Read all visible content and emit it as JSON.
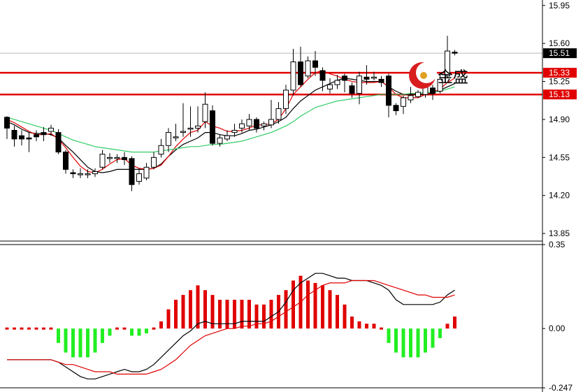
{
  "chart_data": [
    {
      "type": "candlestick",
      "ylim": [
        13.78,
        16.0
      ],
      "yticks": [
        "15.95",
        "15.60",
        "15.25",
        "14.90",
        "14.55",
        "14.20",
        "13.85"
      ],
      "last_price": {
        "value": 15.51,
        "label": "15.51"
      },
      "horizontal_lines": [
        {
          "value": 15.33,
          "label": "15.33",
          "color": "#e00000"
        },
        {
          "value": 15.13,
          "label": "15.13",
          "color": "#e00000"
        }
      ],
      "candles": [
        [
          14.92,
          14.82,
          14.93,
          14.72
        ],
        [
          14.8,
          14.72,
          14.84,
          14.65
        ],
        [
          14.75,
          14.72,
          14.8,
          14.66
        ],
        [
          14.73,
          14.72,
          14.78,
          14.6
        ],
        [
          14.76,
          14.74,
          14.8,
          14.7
        ],
        [
          14.78,
          14.76,
          14.83,
          14.7
        ],
        [
          14.79,
          14.82,
          14.85,
          14.75
        ],
        [
          14.78,
          14.6,
          14.81,
          14.58
        ],
        [
          14.6,
          14.44,
          14.62,
          14.4
        ],
        [
          14.41,
          14.4,
          14.44,
          14.36
        ],
        [
          14.4,
          14.4,
          14.45,
          14.36
        ],
        [
          14.4,
          14.4,
          14.44,
          14.36
        ],
        [
          14.4,
          14.42,
          14.45,
          14.37
        ],
        [
          14.46,
          14.58,
          14.62,
          14.44
        ],
        [
          14.54,
          14.55,
          14.59,
          14.5
        ],
        [
          14.54,
          14.55,
          14.58,
          14.5
        ],
        [
          14.55,
          14.53,
          14.6,
          14.48
        ],
        [
          14.54,
          14.3,
          14.56,
          14.24
        ],
        [
          14.33,
          14.4,
          14.45,
          14.3
        ],
        [
          14.36,
          14.46,
          14.5,
          14.34
        ],
        [
          14.46,
          14.55,
          14.6,
          14.44
        ],
        [
          14.58,
          14.66,
          14.72,
          14.55
        ],
        [
          14.66,
          14.78,
          14.82,
          14.6
        ],
        [
          14.74,
          14.74,
          14.86,
          14.7
        ],
        [
          14.78,
          14.79,
          15.05,
          14.74
        ],
        [
          14.82,
          14.82,
          15.02,
          14.74
        ],
        [
          14.82,
          14.84,
          15.02,
          14.78
        ],
        [
          14.88,
          15.04,
          15.15,
          14.82
        ],
        [
          14.98,
          14.68,
          15.03,
          14.66
        ],
        [
          14.68,
          14.73,
          14.76,
          14.65
        ],
        [
          14.72,
          14.75,
          14.8,
          14.7
        ],
        [
          14.78,
          14.8,
          14.86,
          14.74
        ],
        [
          14.82,
          14.86,
          14.9,
          14.78
        ],
        [
          14.84,
          14.9,
          14.95,
          14.8
        ],
        [
          14.9,
          14.82,
          14.92,
          14.78
        ],
        [
          14.84,
          14.86,
          14.88,
          14.8
        ],
        [
          14.85,
          14.9,
          15.08,
          14.82
        ],
        [
          14.9,
          15.0,
          15.06,
          14.86
        ],
        [
          15.0,
          15.17,
          15.22,
          14.95
        ],
        [
          15.17,
          15.43,
          15.55,
          15.12
        ],
        [
          15.43,
          15.22,
          15.57,
          15.2
        ],
        [
          15.3,
          15.44,
          15.48,
          15.28
        ],
        [
          15.44,
          15.38,
          15.53,
          15.3
        ],
        [
          15.35,
          15.26,
          15.38,
          15.16
        ],
        [
          15.18,
          15.22,
          15.28,
          15.14
        ],
        [
          15.22,
          15.26,
          15.31,
          15.18
        ],
        [
          15.3,
          15.26,
          15.32,
          15.15
        ],
        [
          15.21,
          15.14,
          15.24,
          15.1
        ],
        [
          15.14,
          15.3,
          15.34,
          15.04
        ],
        [
          15.29,
          15.27,
          15.4,
          15.22
        ],
        [
          15.28,
          15.29,
          15.34,
          15.26
        ],
        [
          15.27,
          15.24,
          15.3,
          15.2
        ],
        [
          15.3,
          15.03,
          15.32,
          14.92
        ],
        [
          15.03,
          14.98,
          15.05,
          14.94
        ],
        [
          15.02,
          15.1,
          15.12,
          14.95
        ],
        [
          15.08,
          15.12,
          15.2,
          15.05
        ],
        [
          15.11,
          15.15,
          15.17,
          15.1
        ],
        [
          15.13,
          15.2,
          15.25,
          15.1
        ],
        [
          15.19,
          15.14,
          15.22,
          15.08
        ],
        [
          15.16,
          15.27,
          15.33,
          15.14
        ],
        [
          15.3,
          15.53,
          15.67,
          15.28
        ],
        [
          15.52,
          15.51,
          15.54,
          15.49
        ]
      ],
      "moving_averages": [
        {
          "color": "#000000",
          "values": [
            14.88,
            14.85,
            14.81,
            14.78,
            14.77,
            14.77,
            14.76,
            14.73,
            14.66,
            14.6,
            14.53,
            14.46,
            14.42,
            14.41,
            14.42,
            14.44,
            14.44,
            14.44,
            14.44,
            14.44,
            14.45,
            14.49,
            14.56,
            14.62,
            14.67,
            14.7,
            14.73,
            14.78,
            14.78,
            14.76,
            14.75,
            14.75,
            14.77,
            14.8,
            14.81,
            14.83,
            14.85,
            14.88,
            14.92,
            15.0,
            15.07,
            15.12,
            15.17,
            15.2,
            15.23,
            15.26,
            15.28,
            15.27,
            15.26,
            15.25,
            15.25,
            15.25,
            15.2,
            15.16,
            15.13,
            15.13,
            15.13,
            15.13,
            15.14,
            15.17,
            15.2,
            15.23
          ]
        },
        {
          "color": "#e00000",
          "values": [
            14.9,
            14.87,
            14.83,
            14.79,
            14.76,
            14.76,
            14.77,
            14.72,
            14.64,
            14.55,
            14.47,
            14.42,
            14.41,
            14.44,
            14.49,
            14.53,
            14.54,
            14.48,
            14.45,
            14.44,
            14.45,
            14.48,
            14.56,
            14.65,
            14.72,
            14.78,
            14.8,
            14.88,
            14.84,
            14.82,
            14.79,
            14.79,
            14.8,
            14.82,
            14.85,
            14.85,
            14.86,
            14.9,
            15.0,
            15.13,
            15.2,
            15.27,
            15.33,
            15.35,
            15.32,
            15.3,
            15.27,
            15.25,
            15.24,
            15.24,
            15.24,
            15.25,
            15.2,
            15.13,
            15.1,
            15.1,
            15.1,
            15.13,
            15.15,
            15.18,
            15.24,
            15.28
          ]
        },
        {
          "color": "#33cc66",
          "values": [
            14.92,
            14.9,
            14.88,
            14.86,
            14.84,
            14.82,
            14.8,
            14.77,
            14.74,
            14.71,
            14.69,
            14.67,
            14.65,
            14.64,
            14.63,
            14.62,
            14.61,
            14.6,
            14.6,
            14.6,
            14.6,
            14.61,
            14.62,
            14.63,
            14.64,
            14.65,
            14.65,
            14.66,
            14.67,
            14.67,
            14.68,
            14.69,
            14.7,
            14.72,
            14.74,
            14.76,
            14.78,
            14.81,
            14.84,
            14.88,
            14.93,
            14.97,
            15.01,
            15.03,
            15.05,
            15.07,
            15.08,
            15.09,
            15.1,
            15.11,
            15.12,
            15.13,
            15.13,
            15.13,
            15.13,
            15.14,
            15.14,
            15.15,
            15.15,
            15.16,
            15.18,
            15.2
          ]
        }
      ]
    },
    {
      "type": "macd",
      "ylim": [
        -0.247,
        0.35
      ],
      "yticks": [
        "0.35",
        "0.00",
        "-0.247"
      ],
      "histogram": [
        0.0,
        0.0,
        0.0,
        0.0,
        0.0,
        0.0,
        0.0,
        -0.06,
        -0.1,
        -0.12,
        -0.12,
        -0.12,
        -0.1,
        -0.06,
        -0.03,
        0.0,
        0.0,
        -0.03,
        -0.03,
        -0.02,
        0.0,
        0.03,
        0.08,
        0.12,
        0.14,
        0.16,
        0.18,
        0.16,
        0.14,
        0.12,
        0.12,
        0.12,
        0.12,
        0.12,
        0.1,
        0.1,
        0.12,
        0.14,
        0.16,
        0.2,
        0.22,
        0.2,
        0.19,
        0.18,
        0.16,
        0.14,
        0.1,
        0.05,
        0.03,
        0.02,
        0.02,
        0.0,
        -0.06,
        -0.1,
        -0.12,
        -0.12,
        -0.12,
        -0.1,
        -0.08,
        -0.04,
        0.02,
        0.05
      ],
      "macd_line": {
        "color": "#000000",
        "values": [
          -0.13,
          -0.13,
          -0.13,
          -0.13,
          -0.13,
          -0.13,
          -0.13,
          -0.14,
          -0.16,
          -0.18,
          -0.2,
          -0.21,
          -0.21,
          -0.2,
          -0.19,
          -0.18,
          -0.17,
          -0.18,
          -0.18,
          -0.17,
          -0.15,
          -0.12,
          -0.09,
          -0.06,
          -0.03,
          -0.01,
          0.02,
          0.03,
          0.02,
          0.02,
          0.02,
          0.02,
          0.03,
          0.03,
          0.03,
          0.03,
          0.05,
          0.07,
          0.11,
          0.16,
          0.19,
          0.21,
          0.23,
          0.23,
          0.22,
          0.21,
          0.21,
          0.2,
          0.2,
          0.2,
          0.19,
          0.18,
          0.16,
          0.12,
          0.1,
          0.1,
          0.1,
          0.1,
          0.1,
          0.11,
          0.14,
          0.16
        ]
      },
      "signal_line": {
        "color": "#e00000",
        "values": [
          -0.13,
          -0.13,
          -0.13,
          -0.13,
          -0.13,
          -0.13,
          -0.13,
          -0.14,
          -0.15,
          -0.15,
          -0.16,
          -0.17,
          -0.18,
          -0.18,
          -0.18,
          -0.19,
          -0.19,
          -0.19,
          -0.19,
          -0.19,
          -0.18,
          -0.17,
          -0.15,
          -0.13,
          -0.1,
          -0.07,
          -0.05,
          -0.03,
          -0.02,
          -0.01,
          0.0,
          0.0,
          0.01,
          0.01,
          0.02,
          0.02,
          0.03,
          0.05,
          0.07,
          0.09,
          0.11,
          0.14,
          0.16,
          0.18,
          0.19,
          0.19,
          0.19,
          0.2,
          0.2,
          0.2,
          0.2,
          0.19,
          0.18,
          0.17,
          0.16,
          0.15,
          0.14,
          0.14,
          0.13,
          0.13,
          0.13,
          0.14
        ]
      }
    }
  ],
  "colors": {
    "up": "#ffffff",
    "down": "#000000",
    "hist_up": "#e00000",
    "hist_down": "#22ee22",
    "grid": "#bbbbbb"
  },
  "watermark": {
    "text": "金盛",
    "icon": "golden-sun-logo-icon"
  }
}
